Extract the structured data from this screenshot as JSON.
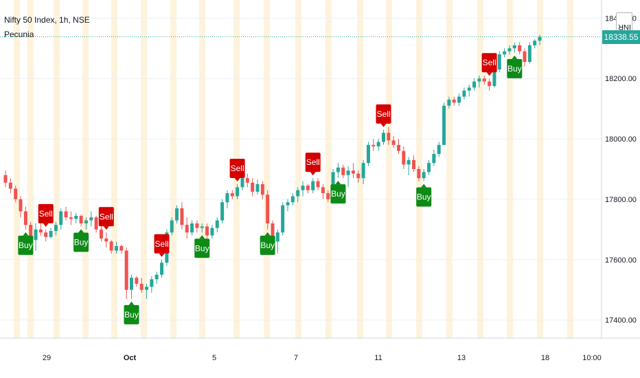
{
  "header": {
    "symbol": "Nifty 50 Index, 1h, NSE",
    "indicator": "Pecunia",
    "currency": "INR"
  },
  "last_price": "18338.55",
  "colors": {
    "up": "#26a69a",
    "down": "#ef5350",
    "buy_label": "#0e8a16",
    "sell_label": "#d50000",
    "session_band": "#fdf3dc",
    "grid": "#eceff4",
    "last_line": "#26a69a"
  },
  "chart_data": {
    "type": "candlestick",
    "y_axis": {
      "min": 17340,
      "max": 18460,
      "ticks": [
        "18400.00",
        "18200.00",
        "18000.00",
        "17800.00",
        "17600.00",
        "17400.00"
      ]
    },
    "x_axis": {
      "labels": [
        "29",
        "Oct",
        "5",
        "7",
        "11",
        "13",
        "18",
        "10:00"
      ]
    },
    "grid": true,
    "candles": [
      [
        17880,
        17895,
        17840,
        17855
      ],
      [
        17855,
        17870,
        17820,
        17835
      ],
      [
        17835,
        17845,
        17790,
        17800
      ],
      [
        17800,
        17810,
        17740,
        17760
      ],
      [
        17760,
        17775,
        17700,
        17715
      ],
      [
        17715,
        17725,
        17650,
        17665
      ],
      [
        17665,
        17720,
        17630,
        17700
      ],
      [
        17700,
        17720,
        17680,
        17690
      ],
      [
        17690,
        17700,
        17660,
        17675
      ],
      [
        17675,
        17705,
        17670,
        17695
      ],
      [
        17695,
        17725,
        17680,
        17715
      ],
      [
        17715,
        17770,
        17700,
        17760
      ],
      [
        17760,
        17775,
        17730,
        17740
      ],
      [
        17740,
        17760,
        17715,
        17735
      ],
      [
        17735,
        17755,
        17720,
        17745
      ],
      [
        17745,
        17750,
        17710,
        17720
      ],
      [
        17720,
        17740,
        17700,
        17730
      ],
      [
        17730,
        17760,
        17710,
        17740
      ],
      [
        17740,
        17745,
        17690,
        17700
      ],
      [
        17700,
        17710,
        17660,
        17670
      ],
      [
        17670,
        17690,
        17640,
        17660
      ],
      [
        17660,
        17665,
        17620,
        17630
      ],
      [
        17630,
        17660,
        17620,
        17645
      ],
      [
        17645,
        17650,
        17620,
        17630
      ],
      [
        17630,
        17640,
        17470,
        17500
      ],
      [
        17500,
        17550,
        17470,
        17540
      ],
      [
        17540,
        17545,
        17510,
        17520
      ],
      [
        17520,
        17540,
        17490,
        17500
      ],
      [
        17500,
        17520,
        17470,
        17510
      ],
      [
        17510,
        17545,
        17490,
        17535
      ],
      [
        17535,
        17560,
        17520,
        17550
      ],
      [
        17550,
        17600,
        17540,
        17590
      ],
      [
        17590,
        17700,
        17580,
        17690
      ],
      [
        17690,
        17740,
        17680,
        17730
      ],
      [
        17730,
        17780,
        17720,
        17770
      ],
      [
        17770,
        17790,
        17700,
        17715
      ],
      [
        17715,
        17740,
        17670,
        17690
      ],
      [
        17690,
        17730,
        17680,
        17720
      ],
      [
        17720,
        17730,
        17690,
        17705
      ],
      [
        17705,
        17720,
        17690,
        17710
      ],
      [
        17710,
        17720,
        17670,
        17680
      ],
      [
        17680,
        17715,
        17670,
        17705
      ],
      [
        17705,
        17740,
        17690,
        17730
      ],
      [
        17730,
        17800,
        17720,
        17790
      ],
      [
        17790,
        17830,
        17770,
        17820
      ],
      [
        17820,
        17830,
        17800,
        17810
      ],
      [
        17810,
        17850,
        17800,
        17840
      ],
      [
        17840,
        17880,
        17830,
        17870
      ],
      [
        17870,
        17885,
        17840,
        17855
      ],
      [
        17855,
        17870,
        17810,
        17825
      ],
      [
        17825,
        17865,
        17815,
        17850
      ],
      [
        17850,
        17860,
        17800,
        17815
      ],
      [
        17815,
        17830,
        17700,
        17720
      ],
      [
        17720,
        17730,
        17640,
        17660
      ],
      [
        17660,
        17700,
        17620,
        17690
      ],
      [
        17690,
        17790,
        17680,
        17780
      ],
      [
        17780,
        17800,
        17760,
        17790
      ],
      [
        17790,
        17820,
        17780,
        17810
      ],
      [
        17810,
        17840,
        17790,
        17830
      ],
      [
        17830,
        17860,
        17810,
        17845
      ],
      [
        17845,
        17850,
        17820,
        17830
      ],
      [
        17830,
        17870,
        17820,
        17860
      ],
      [
        17860,
        17870,
        17830,
        17840
      ],
      [
        17840,
        17850,
        17800,
        17820
      ],
      [
        17820,
        17830,
        17790,
        17800
      ],
      [
        17800,
        17900,
        17790,
        17890
      ],
      [
        17890,
        17920,
        17870,
        17905
      ],
      [
        17905,
        17915,
        17870,
        17880
      ],
      [
        17880,
        17910,
        17840,
        17895
      ],
      [
        17895,
        17920,
        17870,
        17885
      ],
      [
        17885,
        17895,
        17855,
        17870
      ],
      [
        17870,
        17930,
        17850,
        17920
      ],
      [
        17920,
        17990,
        17910,
        17980
      ],
      [
        17980,
        18000,
        17960,
        17975
      ],
      [
        17975,
        18000,
        17960,
        17990
      ],
      [
        17990,
        18030,
        17980,
        18020
      ],
      [
        18020,
        18040,
        17980,
        17995
      ],
      [
        17995,
        18010,
        17970,
        17980
      ],
      [
        17980,
        18000,
        17950,
        17960
      ],
      [
        17960,
        17975,
        17900,
        17915
      ],
      [
        17915,
        17940,
        17880,
        17930
      ],
      [
        17930,
        17945,
        17890,
        17900
      ],
      [
        17900,
        17910,
        17860,
        17870
      ],
      [
        17870,
        17900,
        17860,
        17890
      ],
      [
        17890,
        17930,
        17880,
        17920
      ],
      [
        17920,
        17965,
        17910,
        17950
      ],
      [
        17950,
        17990,
        17940,
        17980
      ],
      [
        17980,
        18120,
        17980,
        18110
      ],
      [
        18110,
        18140,
        18100,
        18130
      ],
      [
        18130,
        18140,
        18110,
        18120
      ],
      [
        18120,
        18150,
        18110,
        18140
      ],
      [
        18140,
        18170,
        18130,
        18160
      ],
      [
        18160,
        18180,
        18140,
        18170
      ],
      [
        18170,
        18200,
        18160,
        18190
      ],
      [
        18190,
        18210,
        18170,
        18200
      ],
      [
        18200,
        18210,
        18180,
        18190
      ],
      [
        18190,
        18200,
        18160,
        18175
      ],
      [
        18175,
        18240,
        18170,
        18230
      ],
      [
        18230,
        18290,
        18220,
        18280
      ],
      [
        18280,
        18300,
        18270,
        18290
      ],
      [
        18290,
        18310,
        18280,
        18300
      ],
      [
        18300,
        18320,
        18285,
        18310
      ],
      [
        18310,
        18320,
        18280,
        18290
      ],
      [
        18290,
        18300,
        18240,
        18255
      ],
      [
        18255,
        18320,
        18250,
        18310
      ],
      [
        18310,
        18330,
        18300,
        18325
      ],
      [
        18325,
        18345,
        18310,
        18338
      ]
    ],
    "signals": [
      {
        "type": "buy",
        "index": 4
      },
      {
        "type": "sell",
        "index": 8
      },
      {
        "type": "buy",
        "index": 15
      },
      {
        "type": "sell",
        "index": 20
      },
      {
        "type": "buy",
        "index": 25
      },
      {
        "type": "sell",
        "index": 31
      },
      {
        "type": "buy",
        "index": 39
      },
      {
        "type": "sell",
        "index": 46
      },
      {
        "type": "buy",
        "index": 52
      },
      {
        "type": "sell",
        "index": 61
      },
      {
        "type": "buy",
        "index": 66
      },
      {
        "type": "sell",
        "index": 75
      },
      {
        "type": "buy",
        "index": 83
      },
      {
        "type": "sell",
        "index": 96
      },
      {
        "type": "buy",
        "index": 101
      }
    ],
    "signal_labels": {
      "buy": "Buy",
      "sell": "Sell"
    }
  }
}
